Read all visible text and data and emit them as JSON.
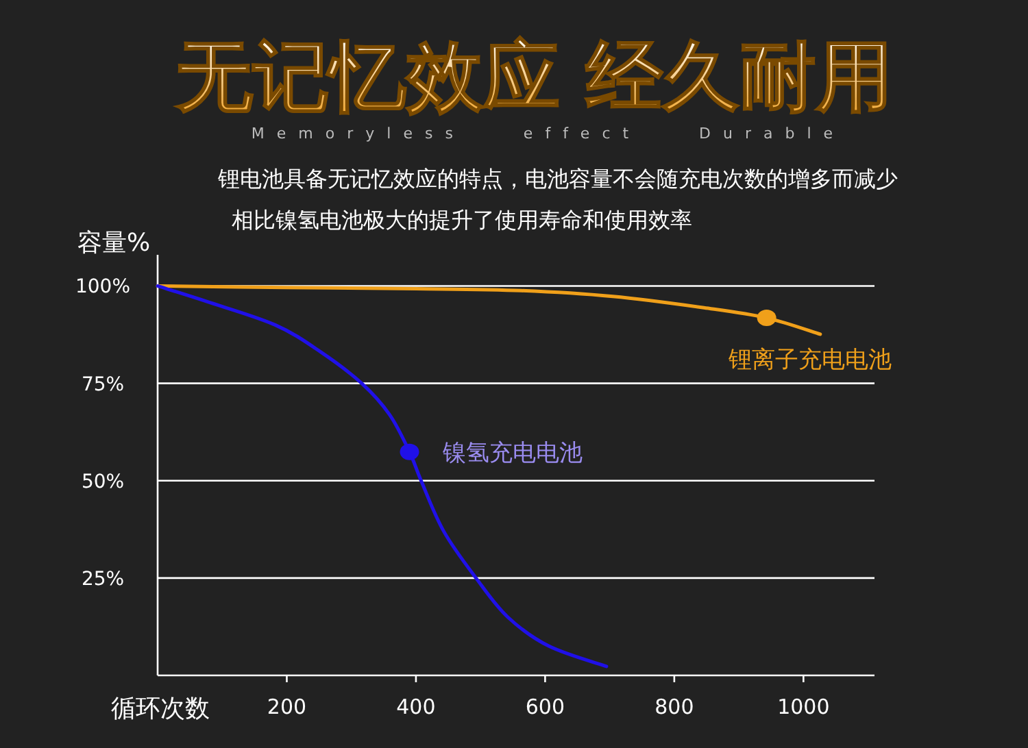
{
  "chart_data": {
    "type": "line",
    "title": "无记忆效应 经久耐用",
    "subtitle": "Memoryless effect Durable",
    "xlabel": "循环次数",
    "ylabel": "容量%",
    "x": [
      0,
      76,
      182,
      253,
      316,
      359,
      390,
      408,
      443,
      493,
      542,
      606,
      695
    ],
    "series": [
      {
        "color": "#f0a01a",
        "x": [
          0,
          200,
          400,
          563,
          705,
          846,
          943,
          1026
        ],
        "values": [
          100,
          99.6,
          99.3,
          98.8,
          97.3,
          94.4,
          91.8,
          87.6
        ]
      },
      {
        "color": "#2010e8",
        "values": [
          100,
          96,
          90,
          83,
          75,
          67,
          57.4,
          50,
          37,
          25,
          15,
          7.5,
          2.3
        ]
      }
    ],
    "annotations": [
      "锂电池具备无记忆效应的特点，电池容量不会随充电次数的增多而减少",
      "相比镍氢电池极大的提升了使用寿命和使用效率",
      {
        "text": "锂离子充电电池",
        "x": 943,
        "y": 91.8
      },
      {
        "text": "镍氢充电电池",
        "x": 390,
        "y": 57.4
      }
    ],
    "xlim": [
      0,
      1110
    ],
    "ylim": [
      0,
      108
    ],
    "xticks": [
      200,
      400,
      600,
      800,
      1000
    ],
    "yticks": [
      {
        "value": 25,
        "label": "25%"
      },
      {
        "value": 50,
        "label": "50%"
      },
      {
        "value": 75,
        "label": "75%"
      },
      {
        "value": 100,
        "label": "100%"
      }
    ],
    "grid": "y",
    "line_style": "solid"
  }
}
